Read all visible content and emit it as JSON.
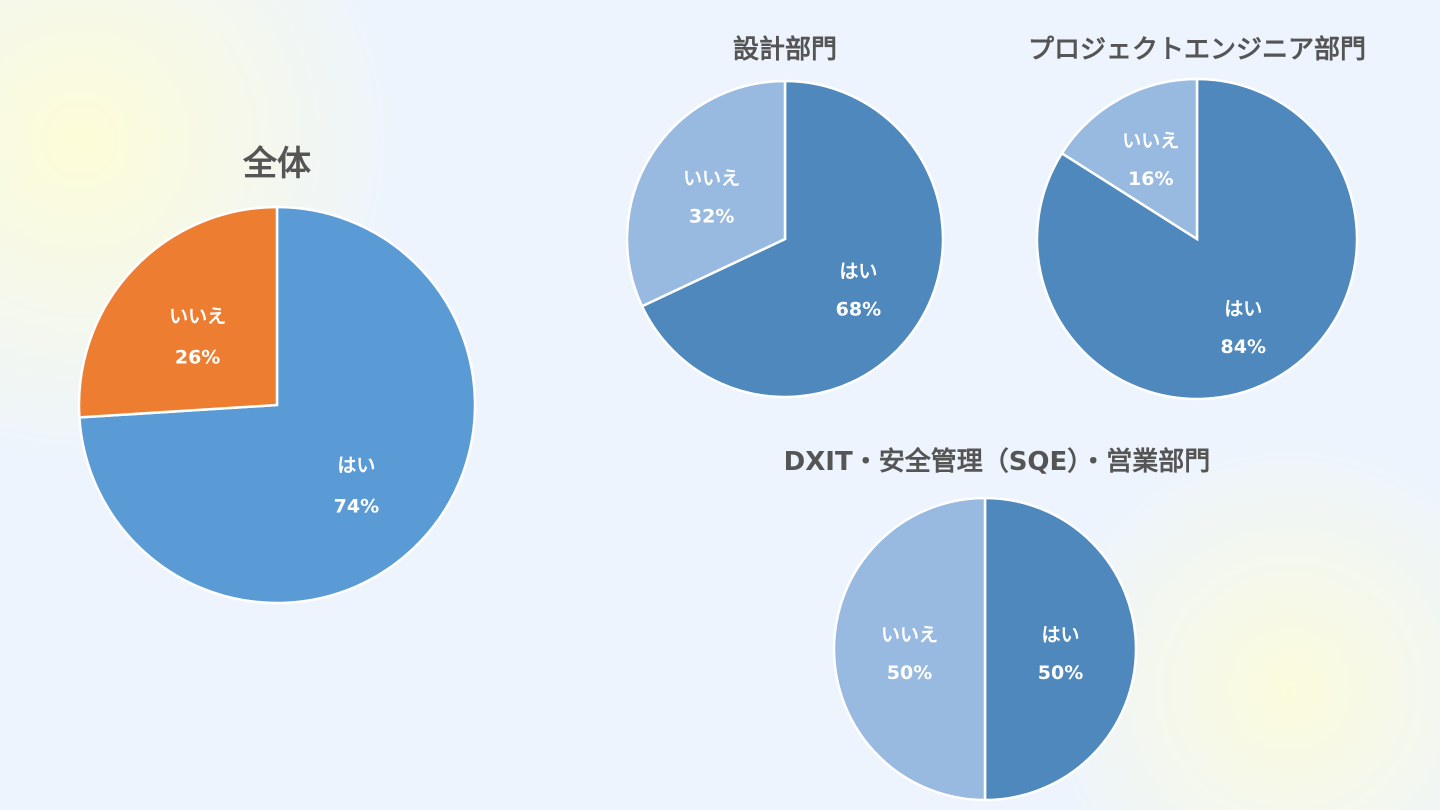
{
  "chart_data": [
    {
      "type": "pie",
      "title": "全体",
      "labels": [
        "はい",
        "いいえ"
      ],
      "values": [
        74,
        26
      ],
      "value_labels": [
        "74%",
        "26%"
      ],
      "colors": [
        "#5B9BD5",
        "#ED7D31"
      ]
    },
    {
      "type": "pie",
      "title": "設計部門",
      "labels": [
        "はい",
        "いいえ"
      ],
      "values": [
        68,
        32
      ],
      "value_labels": [
        "68%",
        "32%"
      ],
      "colors": [
        "#4F88BC",
        "#98B9E0"
      ]
    },
    {
      "type": "pie",
      "title": "プロジェクトエンジニア部門",
      "labels": [
        "はい",
        "いいえ"
      ],
      "values": [
        84,
        16
      ],
      "value_labels": [
        "84%",
        "16%"
      ],
      "colors": [
        "#4F88BC",
        "#98B9E0"
      ]
    },
    {
      "type": "pie",
      "title": "DXIT・安全管理（SQE）・営業部門",
      "labels": [
        "はい",
        "いいえ"
      ],
      "values": [
        50,
        50
      ],
      "value_labels": [
        "50%",
        "50%"
      ],
      "colors": [
        "#4F88BC",
        "#98B9E0"
      ]
    }
  ]
}
